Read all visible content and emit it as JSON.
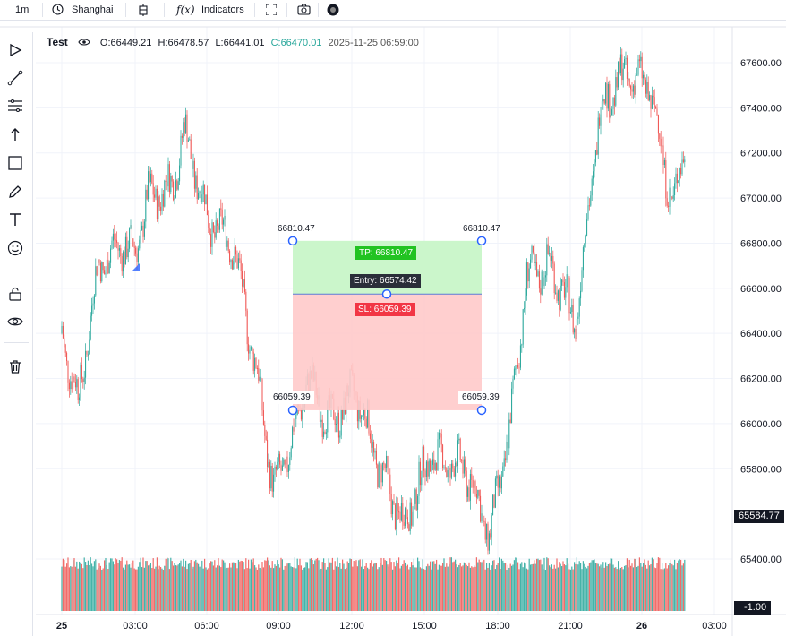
{
  "toolbar": {
    "interval": "1m",
    "timezone": "Shanghai",
    "indicators_label": "Indicators",
    "fx_label": "f(x)"
  },
  "legend": {
    "symbol": "Test",
    "open": "O:66449.21",
    "high": "H:66478.57",
    "low": "L:66441.01",
    "close": "C:66470.01",
    "datetime": "2025-11-25 06:59:00"
  },
  "colors": {
    "up": "#26a69a",
    "down": "#ef5350",
    "tp_zone": "#c8f5c8",
    "sl_zone": "#ffcaca",
    "tp_label_bg": "#22c322",
    "sl_label_bg": "#f23645",
    "entry_label_bg": "#2a2e39",
    "handle": "#2962ff"
  },
  "position": {
    "top_left_price": "66810.47",
    "top_right_price": "66810.47",
    "bottom_left_price": "66059.39",
    "bottom_right_price": "66059.39",
    "tp_label": "TP: 66810.47",
    "entry_label": "Entry: 66574.42",
    "sl_label": "SL: 66059.39"
  },
  "price_axis": {
    "last_price_label": "65584.77",
    "volume_label": "-1.00"
  },
  "left_tools": [
    "play-icon",
    "trendline-icon",
    "fib-icon",
    "arrow-up-icon",
    "rectangle-icon",
    "pencil-icon",
    "text-icon",
    "emoji-icon",
    "lock-icon",
    "eye-icon",
    "trash-icon"
  ],
  "chart_data": {
    "type": "candlestick",
    "y_ticks": [
      67600,
      67400,
      67200,
      67000,
      66800,
      66600,
      66400,
      66200,
      66000,
      65800,
      65400
    ],
    "y_tick_labels": [
      "67600.00",
      "67400.00",
      "67200.00",
      "67000.00",
      "66800.00",
      "66600.00",
      "66400.00",
      "66200.00",
      "66000.00",
      "65800.00",
      "65400.00"
    ],
    "x_ticks": [
      "25",
      "03:00",
      "06:00",
      "09:00",
      "12:00",
      "15:00",
      "18:00",
      "21:00",
      "26",
      "03:00"
    ],
    "ylim": [
      65150,
      67800
    ],
    "approx_close_path": [
      {
        "t": "00:00",
        "p": 66400
      },
      {
        "t": "00:40",
        "p": 66100
      },
      {
        "t": "01:30",
        "p": 66700
      },
      {
        "t": "02:30",
        "p": 66800
      },
      {
        "t": "03:00",
        "p": 66750
      },
      {
        "t": "03:30",
        "p": 67000
      },
      {
        "t": "04:30",
        "p": 67050
      },
      {
        "t": "05:00",
        "p": 67300
      },
      {
        "t": "06:00",
        "p": 66900
      },
      {
        "t": "07:00",
        "p": 66800
      },
      {
        "t": "08:00",
        "p": 66200
      },
      {
        "t": "08:40",
        "p": 65700
      },
      {
        "t": "09:30",
        "p": 65950
      },
      {
        "t": "10:00",
        "p": 66200
      },
      {
        "t": "11:00",
        "p": 66000
      },
      {
        "t": "12:00",
        "p": 66150
      },
      {
        "t": "13:00",
        "p": 65800
      },
      {
        "t": "14:00",
        "p": 65550
      },
      {
        "t": "15:00",
        "p": 65850
      },
      {
        "t": "16:30",
        "p": 65800
      },
      {
        "t": "17:30",
        "p": 65500
      },
      {
        "t": "18:20",
        "p": 66000
      },
      {
        "t": "19:00",
        "p": 66650
      },
      {
        "t": "20:00",
        "p": 66700
      },
      {
        "t": "21:00",
        "p": 66450
      },
      {
        "t": "22:00",
        "p": 67400
      },
      {
        "t": "23:00",
        "p": 67550
      },
      {
        "t": "00:00",
        "p": 67500
      },
      {
        "t": "01:00",
        "p": 66950
      },
      {
        "t": "01:40",
        "p": 67400
      }
    ]
  }
}
